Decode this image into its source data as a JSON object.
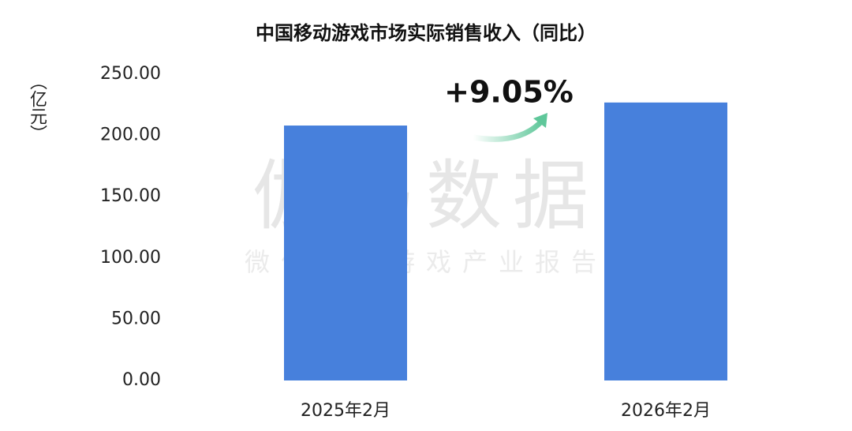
{
  "chart_data": {
    "type": "bar",
    "title": "中国移动游戏市场实际销售收入（同比）",
    "y_label": "（亿元）",
    "categories": [
      "2025年2月",
      "2026年2月"
    ],
    "values": [
      208.1,
      226.9
    ],
    "color": "#4780dc",
    "ylim": [
      0,
      250
    ],
    "yticks": [
      {
        "value": 0,
        "label": "0.00"
      },
      {
        "value": 50,
        "label": "50.00"
      },
      {
        "value": 100,
        "label": "100.00"
      },
      {
        "value": 150,
        "label": "150.00"
      },
      {
        "value": 200,
        "label": "200.00"
      },
      {
        "value": 250,
        "label": "250.00"
      }
    ],
    "grid": false,
    "annotation": "+9.05%",
    "watermark": "伽马数据",
    "watermark_subtitle": "微信号：游戏产业报告"
  }
}
